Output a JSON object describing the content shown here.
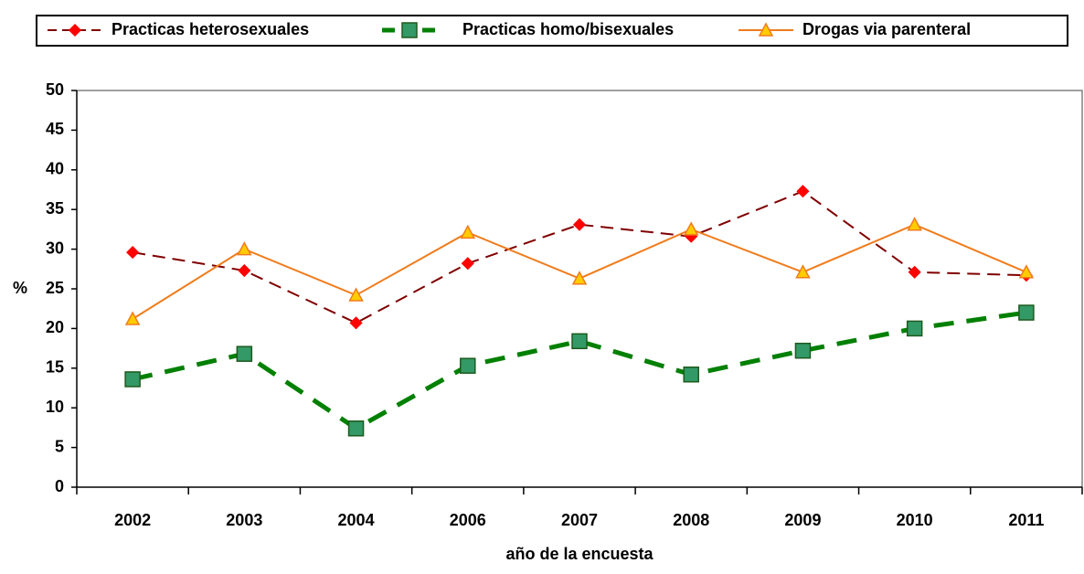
{
  "chart_data": {
    "type": "line",
    "x_label": "año de la encuesta",
    "y_label": "%",
    "categories": [
      "2002",
      "2003",
      "2004",
      "2006",
      "2007",
      "2008",
      "2009",
      "2010",
      "2011"
    ],
    "series": [
      {
        "name": "Practicas heterosexuales",
        "color": "#800000",
        "marker_color": "#ff0000",
        "marker": "diamond",
        "dash": "14,8",
        "width": 2,
        "values": [
          29.6,
          27.3,
          20.7,
          28.2,
          33.1,
          31.6,
          37.3,
          27.1,
          26.7
        ]
      },
      {
        "name": "Practicas homo/bisexuales",
        "color": "#008000",
        "marker_color": "#339966",
        "marker": "square",
        "dash": "22,14",
        "width": 5,
        "values": [
          13.6,
          16.8,
          7.4,
          15.3,
          18.4,
          14.2,
          17.2,
          20.0,
          22.0
        ]
      },
      {
        "name": "Drogas via parenteral",
        "color": "#f07c1c",
        "marker_color": "#ffcc00",
        "marker": "triangle",
        "dash": "none",
        "width": 2,
        "values": [
          21.2,
          30.0,
          24.2,
          32.1,
          26.3,
          32.5,
          27.1,
          33.1,
          27.1
        ]
      }
    ],
    "ylim": [
      0,
      50
    ],
    "yticks": [
      0,
      5,
      10,
      15,
      20,
      25,
      30,
      35,
      40,
      45,
      50
    ],
    "grid": false
  }
}
